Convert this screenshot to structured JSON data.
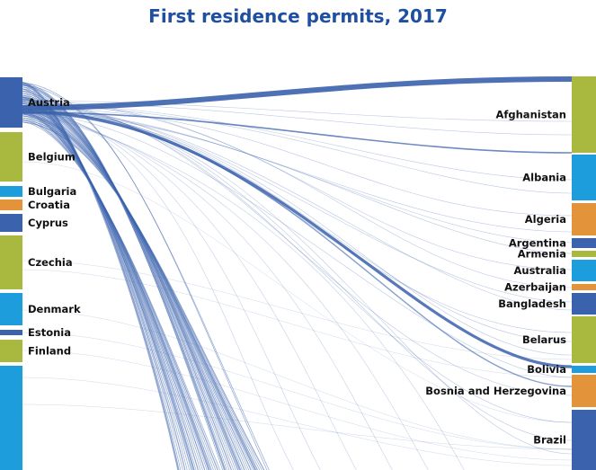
{
  "title": "First residence permits, 2017",
  "colors": {
    "title": "#1f4fa0",
    "blue": "#3b62ad",
    "green": "#a9b83e",
    "cyan": "#1e9ddd",
    "orange": "#e3933a",
    "link": "#3b62ad"
  },
  "chart_data": {
    "type": "sankey",
    "title": "First residence permits, 2017",
    "source_nodes": [
      {
        "name": "Austria",
        "color": "blue"
      },
      {
        "name": "Belgium",
        "color": "green"
      },
      {
        "name": "Bulgaria",
        "color": "cyan"
      },
      {
        "name": "Croatia",
        "color": "orange"
      },
      {
        "name": "Cyprus",
        "color": "blue"
      },
      {
        "name": "Czechia",
        "color": "green"
      },
      {
        "name": "Denmark",
        "color": "cyan"
      },
      {
        "name": "Estonia",
        "color": "blue"
      },
      {
        "name": "Finland",
        "color": "green"
      },
      {
        "name": "",
        "color": "cyan"
      }
    ],
    "target_nodes": [
      {
        "name": "Afghanistan",
        "color": "green"
      },
      {
        "name": "Albania",
        "color": "cyan"
      },
      {
        "name": "Algeria",
        "color": "orange"
      },
      {
        "name": "Argentina",
        "color": "blue"
      },
      {
        "name": "Armenia",
        "color": "green"
      },
      {
        "name": "Australia",
        "color": "cyan"
      },
      {
        "name": "Azerbaijan",
        "color": "orange"
      },
      {
        "name": "Bangladesh",
        "color": "blue"
      },
      {
        "name": "Belarus",
        "color": "green"
      },
      {
        "name": "Bolivia",
        "color": "cyan"
      },
      {
        "name": "Bosnia and Herzegovina",
        "color": "orange"
      },
      {
        "name": "Brazil",
        "color": "blue"
      }
    ]
  }
}
